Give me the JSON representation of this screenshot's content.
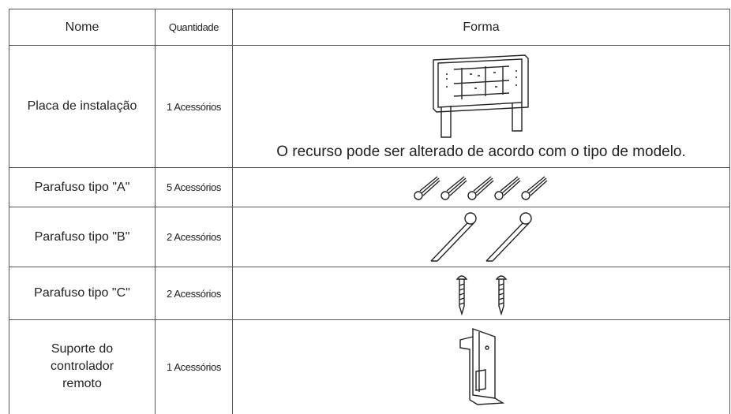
{
  "table": {
    "header": [
      "Nome",
      "Quantidade",
      "Forma"
    ],
    "rows": [
      {
        "name": "Placa de instalação",
        "quantity": "1 Acessórios",
        "note": "O recurso pode ser alterado de acordo com o tipo de modelo."
      },
      {
        "name": "Parafuso tipo \"A\"",
        "quantity": "5 Acessórios"
      },
      {
        "name": "Parafuso tipo \"B\"",
        "quantity": "2 Acessórios"
      },
      {
        "name": "Parafuso tipo \"C\"",
        "quantity": "2 Acessórios"
      },
      {
        "name": "Suporte do controlador remoto",
        "quantity": "1 Acessórios"
      }
    ]
  }
}
